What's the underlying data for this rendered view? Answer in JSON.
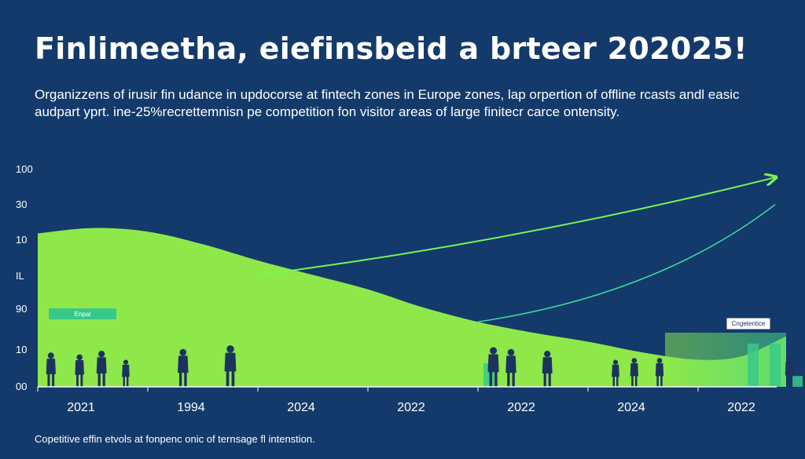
{
  "header": {
    "title": "Finlimeetha, eiefinsbeid a brteer 202025!",
    "subtitle": "Organizzens of irusir fin udance in updocorse at fintech zones in Europe zones, lap orpertion of offline rcasts andl easic audpart yprt. ine-25%recrettemnisn pe competition fon visitor areas of large finitecr carce ontensity."
  },
  "footer": {
    "note": "Copetitive effin etvols at fonpenc onic of ternsage fl intenstion."
  },
  "labels": {
    "left_badge": "Enpal",
    "right_badge": "Cngetentice"
  },
  "colors": {
    "background": "#133a6b",
    "area": "#8ee84a",
    "arrow": "#7ef25a",
    "arrow_secondary": "#3fe0a0",
    "bar_teal": "#38c98a",
    "silhouette": "#1c3260"
  },
  "chart_data": {
    "type": "area",
    "title": "Finlimeetha, eiefinsbeid a brteer 202025!",
    "xlabel": "",
    "ylabel": "",
    "y_tick_labels": [
      "100",
      "30",
      "10",
      "IL",
      "90",
      "10",
      "00"
    ],
    "x_tick_labels": [
      "2021",
      "1994",
      "2024",
      "2022",
      "2022",
      "2024",
      "2022"
    ],
    "ylim": [
      0,
      100
    ],
    "grid": false,
    "area_series": {
      "x": [
        0,
        0.5,
        1,
        1.5,
        2,
        2.5,
        3,
        3.5,
        4,
        4.5,
        5,
        5.5,
        6,
        6.4,
        6.8
      ],
      "values": [
        85,
        88,
        86,
        79,
        70,
        62,
        54,
        44,
        36,
        30,
        25,
        19,
        15,
        17,
        28
      ]
    },
    "trend_arrows": [
      {
        "from": [
          2.0,
          62
        ],
        "to": [
          6.7,
          116
        ]
      },
      {
        "from": [
          4.0,
          36
        ],
        "to": [
          6.7,
          101
        ]
      }
    ],
    "bars": [
      {
        "x": 4.1,
        "value": 13
      },
      {
        "x": 6.5,
        "value": 24
      },
      {
        "x": 6.7,
        "value": 24
      },
      {
        "x": 6.9,
        "value": 6
      }
    ],
    "people_markers": [
      {
        "x": 0.12,
        "height": 19
      },
      {
        "x": 0.38,
        "height": 18
      },
      {
        "x": 0.58,
        "height": 20
      },
      {
        "x": 0.8,
        "height": 15
      },
      {
        "x": 1.32,
        "height": 21
      },
      {
        "x": 1.75,
        "height": 23
      },
      {
        "x": 4.14,
        "height": 22
      },
      {
        "x": 4.3,
        "height": 21
      },
      {
        "x": 4.63,
        "height": 20
      },
      {
        "x": 5.25,
        "height": 15
      },
      {
        "x": 5.42,
        "height": 16
      },
      {
        "x": 5.65,
        "height": 16
      },
      {
        "x": 6.83,
        "height": 17
      }
    ]
  }
}
